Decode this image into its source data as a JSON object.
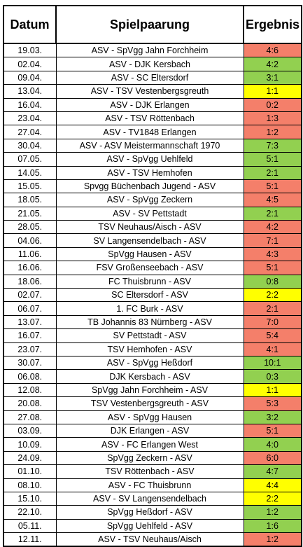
{
  "header": {
    "date": "Datum",
    "match": "Spielpaarung",
    "result": "Ergebnis"
  },
  "colors": {
    "win": "#92d050",
    "loss": "#f47f6a",
    "draw": "#ffff00"
  },
  "rows": [
    {
      "date": "19.03.",
      "match": "ASV - SpVgg Jahn Forchheim",
      "result": "4:6",
      "status": "loss"
    },
    {
      "date": "02.04.",
      "match": "ASV - DJK Kersbach",
      "result": "4:2",
      "status": "win"
    },
    {
      "date": "09.04.",
      "match": "ASV - SC Eltersdorf",
      "result": "3:1",
      "status": "win"
    },
    {
      "date": "13.04.",
      "match": "ASV - TSV Vestenbergsgreuth",
      "result": "1:1",
      "status": "draw"
    },
    {
      "date": "16.04.",
      "match": "ASV - DJK Erlangen",
      "result": "0:2",
      "status": "loss"
    },
    {
      "date": "23.04.",
      "match": "ASV - TSV Röttenbach",
      "result": "1:3",
      "status": "loss"
    },
    {
      "date": "27.04.",
      "match": "ASV - TV1848 Erlangen",
      "result": "1:2",
      "status": "loss"
    },
    {
      "date": "30.04.",
      "match": "ASV - ASV Meistermannschaft 1970",
      "result": "7:3",
      "status": "win"
    },
    {
      "date": "07.05.",
      "match": "ASV - SpVgg Uehlfeld",
      "result": "5:1",
      "status": "win"
    },
    {
      "date": "14.05.",
      "match": "ASV - TSV Hemhofen",
      "result": "2:1",
      "status": "win"
    },
    {
      "date": "15.05.",
      "match": "Spvgg Büchenbach Jugend - ASV",
      "result": "5:1",
      "status": "loss"
    },
    {
      "date": "18.05.",
      "match": "ASV - SpVgg Zeckern",
      "result": "4:5",
      "status": "loss"
    },
    {
      "date": "21.05.",
      "match": "ASV - SV Pettstadt",
      "result": "2:1",
      "status": "win"
    },
    {
      "date": "28.05.",
      "match": "TSV Neuhaus/Aisch - ASV",
      "result": "4:2",
      "status": "loss"
    },
    {
      "date": "04.06.",
      "match": "SV Langensendelbach - ASV",
      "result": "7:1",
      "status": "loss"
    },
    {
      "date": "11.06.",
      "match": "SpVgg Hausen - ASV",
      "result": "4:3",
      "status": "loss"
    },
    {
      "date": "16.06.",
      "match": "FSV Großenseebach - ASV",
      "result": "5:1",
      "status": "loss"
    },
    {
      "date": "18.06.",
      "match": "FC Thuisbrunn - ASV",
      "result": "0:8",
      "status": "win"
    },
    {
      "date": "02.07.",
      "match": "SC Eltersdorf - ASV",
      "result": "2:2",
      "status": "draw"
    },
    {
      "date": "06.07.",
      "match": "1. FC Burk - ASV",
      "result": "2:1",
      "status": "loss"
    },
    {
      "date": "13.07.",
      "match": "TB Johannis 83 Nürnberg - ASV",
      "result": "7:0",
      "status": "loss"
    },
    {
      "date": "16.07.",
      "match": "SV Pettstadt - ASV",
      "result": "5:4",
      "status": "loss"
    },
    {
      "date": "23.07.",
      "match": "TSV Hemhofen - ASV",
      "result": "4:1",
      "status": "loss"
    },
    {
      "date": "30.07.",
      "match": "ASV - SpVgg Heßdorf",
      "result": "10:1",
      "status": "win"
    },
    {
      "date": "06.08.",
      "match": "DJK Kersbach - ASV",
      "result": "0:3",
      "status": "win"
    },
    {
      "date": "12.08.",
      "match": "SpVgg Jahn Forchheim - ASV",
      "result": "1:1",
      "status": "draw"
    },
    {
      "date": "20.08.",
      "match": "TSV Vestenbergsgreuth - ASV",
      "result": "5:3",
      "status": "loss"
    },
    {
      "date": "27.08.",
      "match": "ASV - SpVgg Hausen",
      "result": "3:2",
      "status": "win"
    },
    {
      "date": "03.09.",
      "match": "DJK Erlangen - ASV",
      "result": "5:1",
      "status": "loss"
    },
    {
      "date": "10.09.",
      "match": "ASV - FC Erlangen West",
      "result": "4:0",
      "status": "win"
    },
    {
      "date": "24.09.",
      "match": "SpVgg Zeckern - ASV",
      "result": "6:0",
      "status": "loss"
    },
    {
      "date": "01.10.",
      "match": "TSV Röttenbach - ASV",
      "result": "4:7",
      "status": "win"
    },
    {
      "date": "08.10.",
      "match": "ASV - FC Thuisbrunn",
      "result": "4:4",
      "status": "draw"
    },
    {
      "date": "15.10.",
      "match": "ASV - SV Langensendelbach",
      "result": "2:2",
      "status": "draw"
    },
    {
      "date": "22.10.",
      "match": "SpVgg Heßdorf - ASV",
      "result": "1:2",
      "status": "win"
    },
    {
      "date": "05.11.",
      "match": "SpVgg Uehlfeld - ASV",
      "result": "1:6",
      "status": "win"
    },
    {
      "date": "12.11.",
      "match": "ASV - TSV Neuhaus/Aisch",
      "result": "1:2",
      "status": "loss"
    }
  ]
}
